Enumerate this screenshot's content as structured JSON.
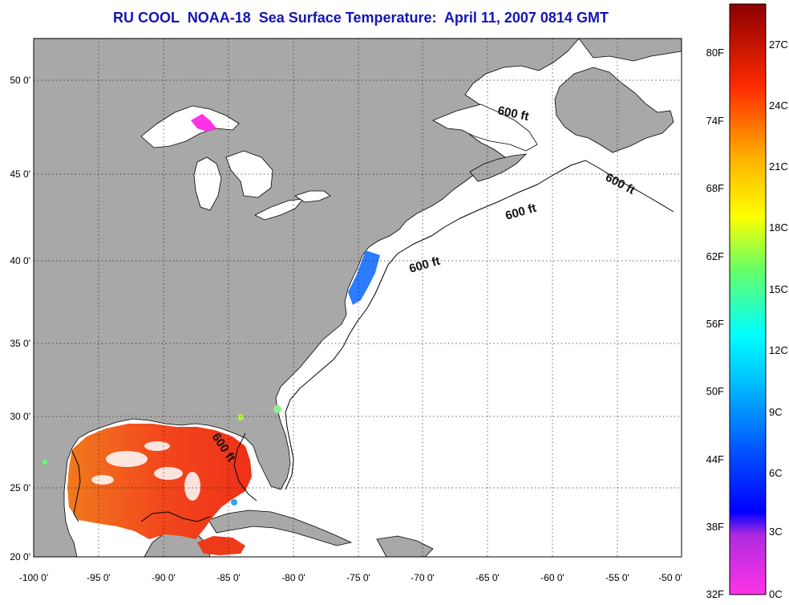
{
  "title": "RU COOL  NOAA-18  Sea Surface Temperature:  April 11, 2007 0814 GMT",
  "colors": {
    "land": "#a8a8a8",
    "ocean": "#ffffff",
    "cloud": "#ffffff",
    "grid": "#000000",
    "title": "#1515b4",
    "coast": "#000000"
  },
  "map": {
    "lon_range": [
      -100,
      -50
    ],
    "lat_range": [
      20,
      52.5
    ],
    "lon_ticks": [
      "-100 0'",
      "-95 0'",
      "-90 0'",
      "-85 0'",
      "-80 0'",
      "-75 0'",
      "-70 0'",
      "-65 0'",
      "-60 0'",
      "-55 0'",
      "-50 0'"
    ],
    "lat_ticks": [
      "20 0'",
      "25 0'",
      "30 0'",
      "35 0'",
      "40 0'",
      "45 0'",
      "50 0'"
    ],
    "grid": true
  },
  "contour_labels": [
    "600 ft",
    "600 ft",
    "600 ft",
    "600 ft",
    "600 ft"
  ],
  "colorbar": {
    "fahrenheit_labels": [
      "32F",
      "38F",
      "44F",
      "50F",
      "56F",
      "62F",
      "68F",
      "74F",
      "80F"
    ],
    "celsius_labels": [
      "0C",
      "3C",
      "6C",
      "9C",
      "12C",
      "15C",
      "18C",
      "21C",
      "24C",
      "27C"
    ],
    "stops": [
      "#ff33e6",
      "#8a2be2",
      "#0000ff",
      "#0080ff",
      "#00ffff",
      "#33ff99",
      "#ffff00",
      "#ffa500",
      "#ff3300",
      "#8b0000"
    ]
  }
}
